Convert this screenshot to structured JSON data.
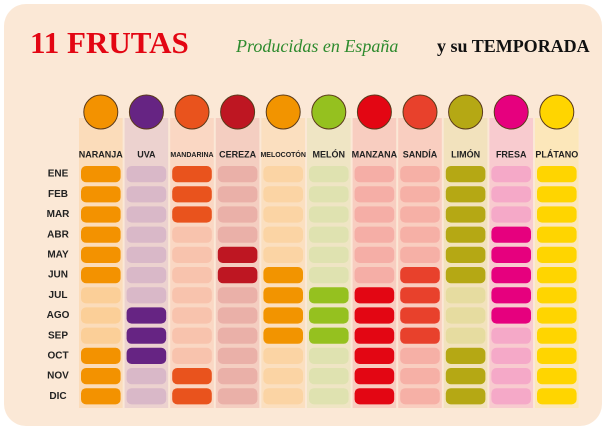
{
  "header": {
    "title": "11 FRUTAS",
    "subtitle": "Producidas en España",
    "tagline": "y su TEMPORADA"
  },
  "months": [
    "ENE",
    "FEB",
    "MAR",
    "ABR",
    "MAY",
    "JUN",
    "JUL",
    "AGO",
    "SEP",
    "OCT",
    "NOV",
    "DIC"
  ],
  "fruits": [
    {
      "name": "NARANJA",
      "color": "#f39200",
      "pale": "#fbcf98",
      "season": [
        true,
        true,
        true,
        true,
        true,
        true,
        false,
        false,
        false,
        true,
        true,
        true
      ]
    },
    {
      "name": "UVA",
      "color": "#662483",
      "pale": "#d9b8c8",
      "season": [
        false,
        false,
        false,
        false,
        false,
        false,
        false,
        true,
        true,
        true,
        false,
        false
      ]
    },
    {
      "name": "MANDARINA",
      "color": "#e9531d",
      "pale": "#f8c3ad",
      "season": [
        true,
        true,
        true,
        false,
        false,
        false,
        false,
        false,
        false,
        false,
        true,
        true
      ]
    },
    {
      "name": "CEREZA",
      "color": "#be1622",
      "pale": "#eab0a8",
      "season": [
        false,
        false,
        false,
        false,
        true,
        true,
        false,
        false,
        false,
        false,
        false,
        false
      ]
    },
    {
      "name": "MELOCOTÓN",
      "color": "#f29400",
      "pale": "#fbd4a4",
      "season": [
        false,
        false,
        false,
        false,
        false,
        true,
        true,
        true,
        true,
        false,
        false,
        false
      ]
    },
    {
      "name": "MELÓN",
      "color": "#95c11f",
      "pale": "#dfe2b0",
      "season": [
        false,
        false,
        false,
        false,
        false,
        false,
        true,
        true,
        true,
        false,
        false,
        false
      ]
    },
    {
      "name": "MANZANA",
      "color": "#e30613",
      "pale": "#f5aea6",
      "season": [
        false,
        false,
        false,
        false,
        false,
        false,
        true,
        true,
        true,
        true,
        true,
        true
      ]
    },
    {
      "name": "SANDÍA",
      "color": "#e8412c",
      "pale": "#f6b0a6",
      "season": [
        false,
        false,
        false,
        false,
        false,
        true,
        true,
        true,
        true,
        false,
        false,
        false
      ]
    },
    {
      "name": "LIMÓN",
      "color": "#b5a814",
      "pale": "#e6dca0",
      "season": [
        true,
        true,
        true,
        true,
        true,
        true,
        false,
        false,
        false,
        true,
        true,
        true
      ]
    },
    {
      "name": "FRESA",
      "color": "#e6007e",
      "pale": "#f5a9c8",
      "season": [
        false,
        false,
        false,
        true,
        true,
        true,
        true,
        true,
        false,
        false,
        false,
        false
      ]
    },
    {
      "name": "PLÁTANO",
      "color": "#ffd500",
      "pale": "#fde79a",
      "season": [
        true,
        true,
        true,
        true,
        true,
        true,
        true,
        true,
        true,
        true,
        true,
        true
      ]
    }
  ]
}
